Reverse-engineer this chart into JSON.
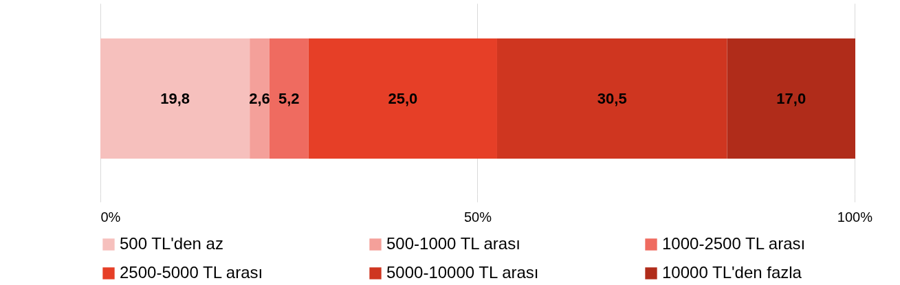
{
  "chart_data": {
    "type": "bar",
    "orientation": "horizontal",
    "stacked": true,
    "categories": [
      null
    ],
    "series": [
      {
        "name": "500 TL'den az",
        "color": "#f6c0bd",
        "values": [
          19.8
        ],
        "value_labels": [
          "19,8"
        ]
      },
      {
        "name": "500-1000 TL arası",
        "color": "#f4a09a",
        "values": [
          2.6
        ],
        "value_labels": [
          "2,6"
        ]
      },
      {
        "name": "1000-2500 TL arası",
        "color": "#ef6b60",
        "values": [
          5.2
        ],
        "value_labels": [
          "5,2"
        ]
      },
      {
        "name": "2500-5000 TL arası",
        "color": "#e63f27",
        "values": [
          25.0
        ],
        "value_labels": [
          "25,0"
        ]
      },
      {
        "name": "5000-10000 TL arası",
        "color": "#cf3620",
        "values": [
          30.5
        ],
        "value_labels": [
          "30,5"
        ]
      },
      {
        "name": "10000 TL'den fazla",
        "color": "#b02c1a",
        "values": [
          17.0
        ],
        "value_labels": [
          "17,0"
        ]
      }
    ],
    "xlim": [
      0,
      100.1
    ],
    "xticks": [
      {
        "value": 0,
        "label": "0%"
      },
      {
        "value": 50,
        "label": "50%"
      },
      {
        "value": 100,
        "label": "100%"
      }
    ],
    "grid": "x",
    "legend": "bottom",
    "tick_labels": "x"
  }
}
